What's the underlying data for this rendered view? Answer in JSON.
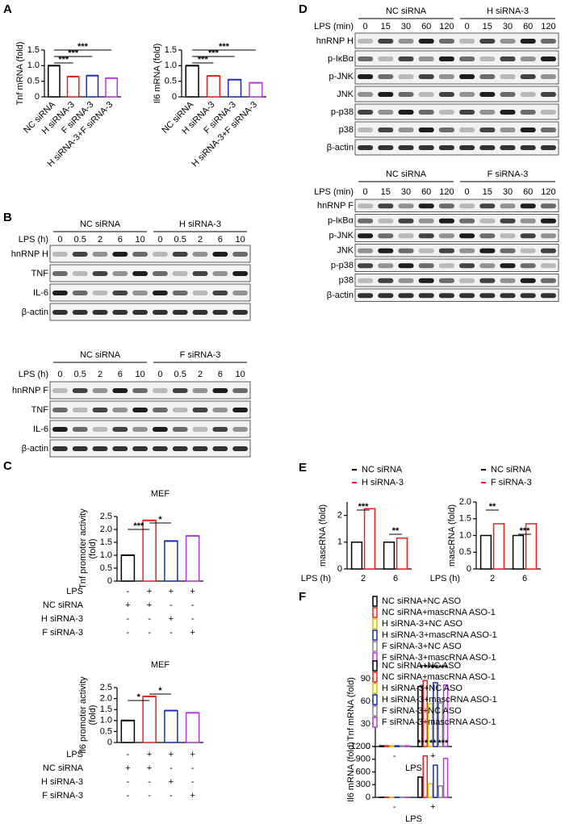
{
  "panels": [
    "A",
    "B",
    "C",
    "D",
    "E",
    "F"
  ],
  "blots": [
    {
      "groups": [
        "NC siRNA",
        "H siRNA-3"
      ],
      "time_label": "LPS (h)",
      "times": [
        "0",
        "0.5",
        "2",
        "6",
        "10"
      ],
      "rows": [
        "hnRNP H",
        "TNF",
        "IL-6",
        "β-actin"
      ]
    },
    {
      "groups": [
        "NC siRNA",
        "F siRNA-3"
      ],
      "time_label": "LPS (h)",
      "times": [
        "0",
        "0.5",
        "2",
        "6",
        "10"
      ],
      "rows": [
        "hnRNP F",
        "TNF",
        "IL-6",
        "β-actin"
      ]
    },
    {
      "groups": [
        "NC siRNA",
        "H siRNA-3"
      ],
      "time_label": "LPS (min)",
      "times": [
        "0",
        "15",
        "30",
        "60",
        "120"
      ],
      "rows": [
        "hnRNP H",
        "p-IκBα",
        "p-JNK",
        "JNK",
        "p-p38",
        "p38",
        "β-actin"
      ]
    },
    {
      "groups": [
        "NC siRNA",
        "F siRNA-3"
      ],
      "time_label": "LPS (min)",
      "times": [
        "0",
        "15",
        "30",
        "60",
        "120"
      ],
      "rows": [
        "hnRNP F",
        "p-IκBα",
        "p-JNK",
        "JNK",
        "p-p38",
        "p38",
        "β-actin"
      ]
    }
  ],
  "chart_data": [
    {
      "type": "bar",
      "ylabel": [
        "Tnf mRNA (fold)"
      ],
      "categories": [
        "NC siRNA",
        "H siRNA-3",
        "F siRNA-3",
        "H siRNA-3+F siRNA-3"
      ],
      "values": [
        1,
        0.65,
        0.68,
        0.6
      ],
      "colors": [
        "#000000",
        "#e8211d",
        "#1a2db4",
        "#b43cd8"
      ],
      "ylim": [
        0,
        1.5
      ],
      "yticks": [
        0,
        0.5,
        {
          "value": 1,
          "label": "1.0"
        },
        1.5
      ],
      "annotations": [
        "***",
        "***",
        "***"
      ]
    },
    {
      "type": "bar",
      "ylabel": [
        "Il6 mRNA (fold)"
      ],
      "categories": [
        "NC siRNA",
        "H siRNA-3",
        "F siRNA-3",
        "H siRNA-3+F siRNA-3"
      ],
      "values": [
        1,
        0.67,
        0.55,
        0.45
      ],
      "colors": [
        "#000000",
        "#e8211d",
        "#1a2db4",
        "#b43cd8"
      ],
      "ylim": [
        0,
        1.5
      ],
      "yticks": [
        0,
        0.5,
        {
          "value": 1,
          "label": "1.0"
        },
        1.5
      ],
      "annotations": [
        "***",
        "***",
        "***"
      ]
    },
    {
      "type": "bar",
      "title": "MEF",
      "ylabel": [
        "Tnf promoter activity",
        "(fold)"
      ],
      "values": [
        1,
        2.35,
        1.55,
        1.75
      ],
      "colors": [
        "#000000",
        "#e8211d",
        "#1a2db4",
        "#b43cd8"
      ],
      "ylim": [
        0,
        2.5
      ],
      "yticks": [
        0,
        0.5,
        {
          "value": 1,
          "label": "1.0"
        },
        1.5,
        {
          "value": 2,
          "label": "2.0"
        },
        2.5
      ],
      "annotations": [
        "***",
        "*"
      ],
      "conditions": [
        {
          "label": "LPS",
          "signs": [
            "-",
            "+",
            "+",
            "+"
          ]
        },
        {
          "label": "NC siRNA",
          "signs": [
            "+",
            "+",
            "-",
            "-"
          ]
        },
        {
          "label": "H siRNA-3",
          "signs": [
            "-",
            "-",
            "+",
            "-"
          ]
        },
        {
          "label": "F siRNA-3",
          "signs": [
            "-",
            "-",
            "-",
            "+"
          ]
        }
      ]
    },
    {
      "type": "bar",
      "title": "MEF",
      "ylabel": [
        "Il6 promoter activity",
        "(fold)"
      ],
      "values": [
        1,
        2.1,
        1.45,
        1.35
      ],
      "colors": [
        "#000000",
        "#e8211d",
        "#1a2db4",
        "#b43cd8"
      ],
      "ylim": [
        0,
        2.5
      ],
      "yticks": [
        0,
        0.5,
        {
          "value": 1,
          "label": "1.0"
        },
        1.5,
        {
          "value": 2,
          "label": "2.0"
        },
        2.5
      ],
      "annotations": [
        "*",
        "*"
      ],
      "conditions": [
        {
          "label": "LPS",
          "signs": [
            "-",
            "+",
            "+",
            "+"
          ]
        },
        {
          "label": "NC siRNA",
          "signs": [
            "+",
            "+",
            "-",
            "-"
          ]
        },
        {
          "label": "H siRNA-3",
          "signs": [
            "-",
            "-",
            "+",
            "-"
          ]
        },
        {
          "label": "F siRNA-3",
          "signs": [
            "-",
            "-",
            "-",
            "+"
          ]
        }
      ]
    },
    {
      "type": "grouped_bar",
      "ylabel": [
        "mascRNA (fold)"
      ],
      "xlabel": "LPS (h)",
      "categories": [
        "2",
        "6"
      ],
      "series": [
        {
          "name": "NC siRNA",
          "color": "#000000",
          "values": [
            1,
            1
          ]
        },
        {
          "name": "H siRNA-3",
          "color": "#e8211d",
          "values": [
            2.25,
            1.15
          ]
        }
      ],
      "ylim": [
        0,
        2.5
      ],
      "yticks": [
        0,
        1,
        2
      ],
      "annotations": [
        "***",
        "**"
      ]
    },
    {
      "type": "grouped_bar",
      "ylabel": [
        "mascRNA (fold)"
      ],
      "xlabel": "LPS (h)",
      "categories": [
        "2",
        "6"
      ],
      "series": [
        {
          "name": "NC siRNA",
          "color": "#000000",
          "values": [
            1,
            1
          ]
        },
        {
          "name": "F siRNA-3",
          "color": "#e8211d",
          "values": [
            1.35,
            1.35
          ]
        }
      ],
      "ylim": [
        0,
        2
      ],
      "yticks": [
        0,
        0.5,
        {
          "value": 1,
          "label": "1.0"
        },
        1.5,
        {
          "value": 2,
          "label": "2.0"
        }
      ],
      "annotations": [
        "**",
        "***"
      ]
    },
    {
      "type": "grouped_bar",
      "ylabel": [
        "Tnf mRNA (fold)"
      ],
      "xlabel": "LPS",
      "categories": [
        "-",
        "+"
      ],
      "series": [
        {
          "name": "NC siRNA+NC ASO",
          "color": "#000000",
          "values": [
            1,
            80
          ]
        },
        {
          "name": "NC siRNA+mascRNA ASO-1",
          "color": "#e8211d",
          "values": [
            1,
            88
          ]
        },
        {
          "name": "H siRNA-3+NC ASO",
          "color": "#e0c000",
          "values": [
            1,
            57
          ]
        },
        {
          "name": "H siRNA-3+mascRNA ASO-1",
          "color": "#1a2db4",
          "values": [
            1,
            85
          ]
        },
        {
          "name": "F siRNA-3+NC ASO",
          "color": "#888888",
          "values": [
            1,
            58
          ]
        },
        {
          "name": "F siRNA-3+mascRNA ASO-1",
          "color": "#b43cd8",
          "values": [
            1,
            82
          ]
        }
      ],
      "ylim": [
        0,
        100
      ],
      "yticks": [
        0,
        30,
        60,
        90
      ],
      "annotations": [
        "*",
        "***",
        "***",
        "**"
      ]
    },
    {
      "type": "grouped_bar",
      "ylabel": [
        "Il6 mRNA (fold)"
      ],
      "xlabel": "LPS",
      "categories": [
        "-",
        "+"
      ],
      "series": [
        {
          "name": "NC siRNA+NC ASO",
          "color": "#000000",
          "values": [
            5,
            480
          ]
        },
        {
          "name": "NC siRNA+mascRNA ASO-1",
          "color": "#e8211d",
          "values": [
            5,
            980
          ]
        },
        {
          "name": "H siRNA-3+NC ASO",
          "color": "#e0c000",
          "values": [
            5,
            320
          ]
        },
        {
          "name": "H siRNA-3+mascRNA ASO-1",
          "color": "#1a2db4",
          "values": [
            5,
            760
          ]
        },
        {
          "name": "F siRNA-3+NC ASO",
          "color": "#888888",
          "values": [
            5,
            270
          ]
        },
        {
          "name": "F siRNA-3+mascRNA ASO-1",
          "color": "#b43cd8",
          "values": [
            5,
            920
          ]
        }
      ],
      "ylim": [
        0,
        1200
      ],
      "yticks": [
        0,
        300,
        600,
        900,
        1200
      ],
      "annotations": [
        "***",
        "**",
        "***"
      ]
    }
  ]
}
